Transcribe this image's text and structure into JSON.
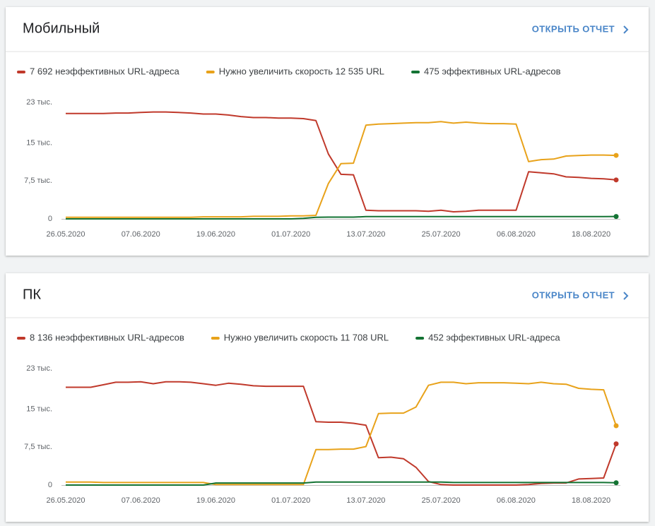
{
  "chart_data": [
    {
      "type": "line",
      "title": "Мобильный",
      "action": "ОТКРЫТЬ ОТЧЕТ",
      "x": [
        "26.05.2020",
        "28.05.2020",
        "30.05.2020",
        "01.06.2020",
        "03.06.2020",
        "05.06.2020",
        "07.06.2020",
        "09.06.2020",
        "11.06.2020",
        "13.06.2020",
        "15.06.2020",
        "17.06.2020",
        "19.06.2020",
        "21.06.2020",
        "23.06.2020",
        "25.06.2020",
        "27.06.2020",
        "29.06.2020",
        "01.07.2020",
        "03.07.2020",
        "05.07.2020",
        "07.07.2020",
        "09.07.2020",
        "11.07.2020",
        "13.07.2020",
        "15.07.2020",
        "17.07.2020",
        "19.07.2020",
        "21.07.2020",
        "23.07.2020",
        "25.07.2020",
        "27.07.2020",
        "29.07.2020",
        "31.07.2020",
        "02.08.2020",
        "04.08.2020",
        "06.08.2020",
        "08.08.2020",
        "10.08.2020",
        "12.08.2020",
        "14.08.2020",
        "16.08.2020",
        "18.08.2020",
        "20.08.2020",
        "22.08.2020"
      ],
      "xticks": [
        "26.05.2020",
        "07.06.2020",
        "19.06.2020",
        "01.07.2020",
        "13.07.2020",
        "25.07.2020",
        "06.08.2020",
        "18.08.2020"
      ],
      "ylim": [
        0,
        23000
      ],
      "yticks": [
        0,
        {
          "value": 7500,
          "label": "7,5 тыс."
        },
        {
          "value": 15000,
          "label": "15 тыс."
        },
        {
          "value": 23000,
          "label": "23 тыс."
        }
      ],
      "grid": false,
      "series": [
        {
          "name": "7 692 неэффективных URL-адреса",
          "color": "#c0392b",
          "values": [
            20800,
            20800,
            20800,
            20800,
            20900,
            20900,
            21000,
            21100,
            21100,
            21000,
            20900,
            20700,
            20700,
            20500,
            20200,
            20000,
            20000,
            19900,
            19900,
            19800,
            19400,
            12800,
            8800,
            8700,
            1700,
            1600,
            1600,
            1600,
            1600,
            1500,
            1700,
            1400,
            1500,
            1700,
            1700,
            1700,
            1700,
            9300,
            9100,
            8900,
            8300,
            8200,
            8000,
            7900,
            7692
          ]
        },
        {
          "name": "Нужно увеличить скорость 12 535 URL",
          "color": "#e8a21a",
          "values": [
            300,
            300,
            300,
            300,
            300,
            300,
            300,
            300,
            300,
            300,
            300,
            400,
            400,
            400,
            400,
            500,
            500,
            500,
            600,
            600,
            700,
            7000,
            10900,
            11000,
            18500,
            18700,
            18800,
            18900,
            19000,
            19000,
            19200,
            18900,
            19100,
            18900,
            18800,
            18800,
            18700,
            11300,
            11700,
            11800,
            12400,
            12500,
            12600,
            12600,
            12535
          ]
        },
        {
          "name": "475 эффективных URL-адресов",
          "color": "#137333",
          "values": [
            0,
            0,
            0,
            0,
            0,
            0,
            0,
            0,
            0,
            0,
            0,
            0,
            0,
            0,
            0,
            0,
            0,
            0,
            0,
            100,
            300,
            350,
            350,
            350,
            450,
            450,
            450,
            450,
            450,
            450,
            450,
            450,
            450,
            450,
            450,
            450,
            450,
            450,
            450,
            450,
            450,
            450,
            450,
            450,
            475
          ]
        }
      ]
    },
    {
      "type": "line",
      "title": "ПК",
      "action": "ОТКРЫТЬ ОТЧЕТ",
      "x": [
        "26.05.2020",
        "28.05.2020",
        "30.05.2020",
        "01.06.2020",
        "03.06.2020",
        "05.06.2020",
        "07.06.2020",
        "09.06.2020",
        "11.06.2020",
        "13.06.2020",
        "15.06.2020",
        "17.06.2020",
        "19.06.2020",
        "21.06.2020",
        "23.06.2020",
        "25.06.2020",
        "27.06.2020",
        "29.06.2020",
        "01.07.2020",
        "03.07.2020",
        "05.07.2020",
        "07.07.2020",
        "09.07.2020",
        "11.07.2020",
        "13.07.2020",
        "15.07.2020",
        "17.07.2020",
        "19.07.2020",
        "21.07.2020",
        "23.07.2020",
        "25.07.2020",
        "27.07.2020",
        "29.07.2020",
        "31.07.2020",
        "02.08.2020",
        "04.08.2020",
        "06.08.2020",
        "08.08.2020",
        "10.08.2020",
        "12.08.2020",
        "14.08.2020",
        "16.08.2020",
        "18.08.2020",
        "20.08.2020",
        "22.08.2020"
      ],
      "xticks": [
        "26.05.2020",
        "07.06.2020",
        "19.06.2020",
        "01.07.2020",
        "13.07.2020",
        "25.07.2020",
        "06.08.2020",
        "18.08.2020"
      ],
      "ylim": [
        0,
        23000
      ],
      "yticks": [
        0,
        {
          "value": 7500,
          "label": "7,5 тыс."
        },
        {
          "value": 15000,
          "label": "15 тыс."
        },
        {
          "value": 23000,
          "label": "23 тыс."
        }
      ],
      "grid": false,
      "series": [
        {
          "name": "8 136 неэффективных URL-адресов",
          "color": "#c0392b",
          "values": [
            19300,
            19300,
            19300,
            19800,
            20300,
            20300,
            20400,
            20000,
            20400,
            20400,
            20300,
            20000,
            19700,
            20100,
            19900,
            19600,
            19500,
            19500,
            19500,
            19500,
            12500,
            12400,
            12400,
            12200,
            11800,
            5400,
            5500,
            5200,
            3500,
            700,
            100,
            0,
            0,
            0,
            0,
            0,
            0,
            100,
            300,
            400,
            400,
            1200,
            1300,
            1400,
            8136
          ]
        },
        {
          "name": "Нужно увеличить скорость 11 708 URL",
          "color": "#e8a21a",
          "values": [
            600,
            600,
            600,
            500,
            500,
            500,
            500,
            500,
            500,
            500,
            500,
            500,
            100,
            100,
            100,
            100,
            100,
            100,
            100,
            100,
            7000,
            7000,
            7100,
            7100,
            7600,
            14100,
            14200,
            14200,
            15400,
            19700,
            20300,
            20300,
            20000,
            20200,
            20200,
            20200,
            20100,
            20000,
            20300,
            20000,
            19900,
            19100,
            18900,
            18800,
            11708
          ]
        },
        {
          "name": "452 эффективных URL-адреса",
          "color": "#137333",
          "values": [
            0,
            0,
            0,
            0,
            0,
            0,
            0,
            0,
            0,
            0,
            0,
            0,
            400,
            400,
            400,
            400,
            400,
            400,
            400,
            400,
            600,
            600,
            600,
            600,
            600,
            600,
            600,
            600,
            600,
            600,
            600,
            500,
            500,
            500,
            500,
            500,
            500,
            500,
            500,
            500,
            500,
            500,
            500,
            500,
            452
          ]
        }
      ]
    }
  ]
}
